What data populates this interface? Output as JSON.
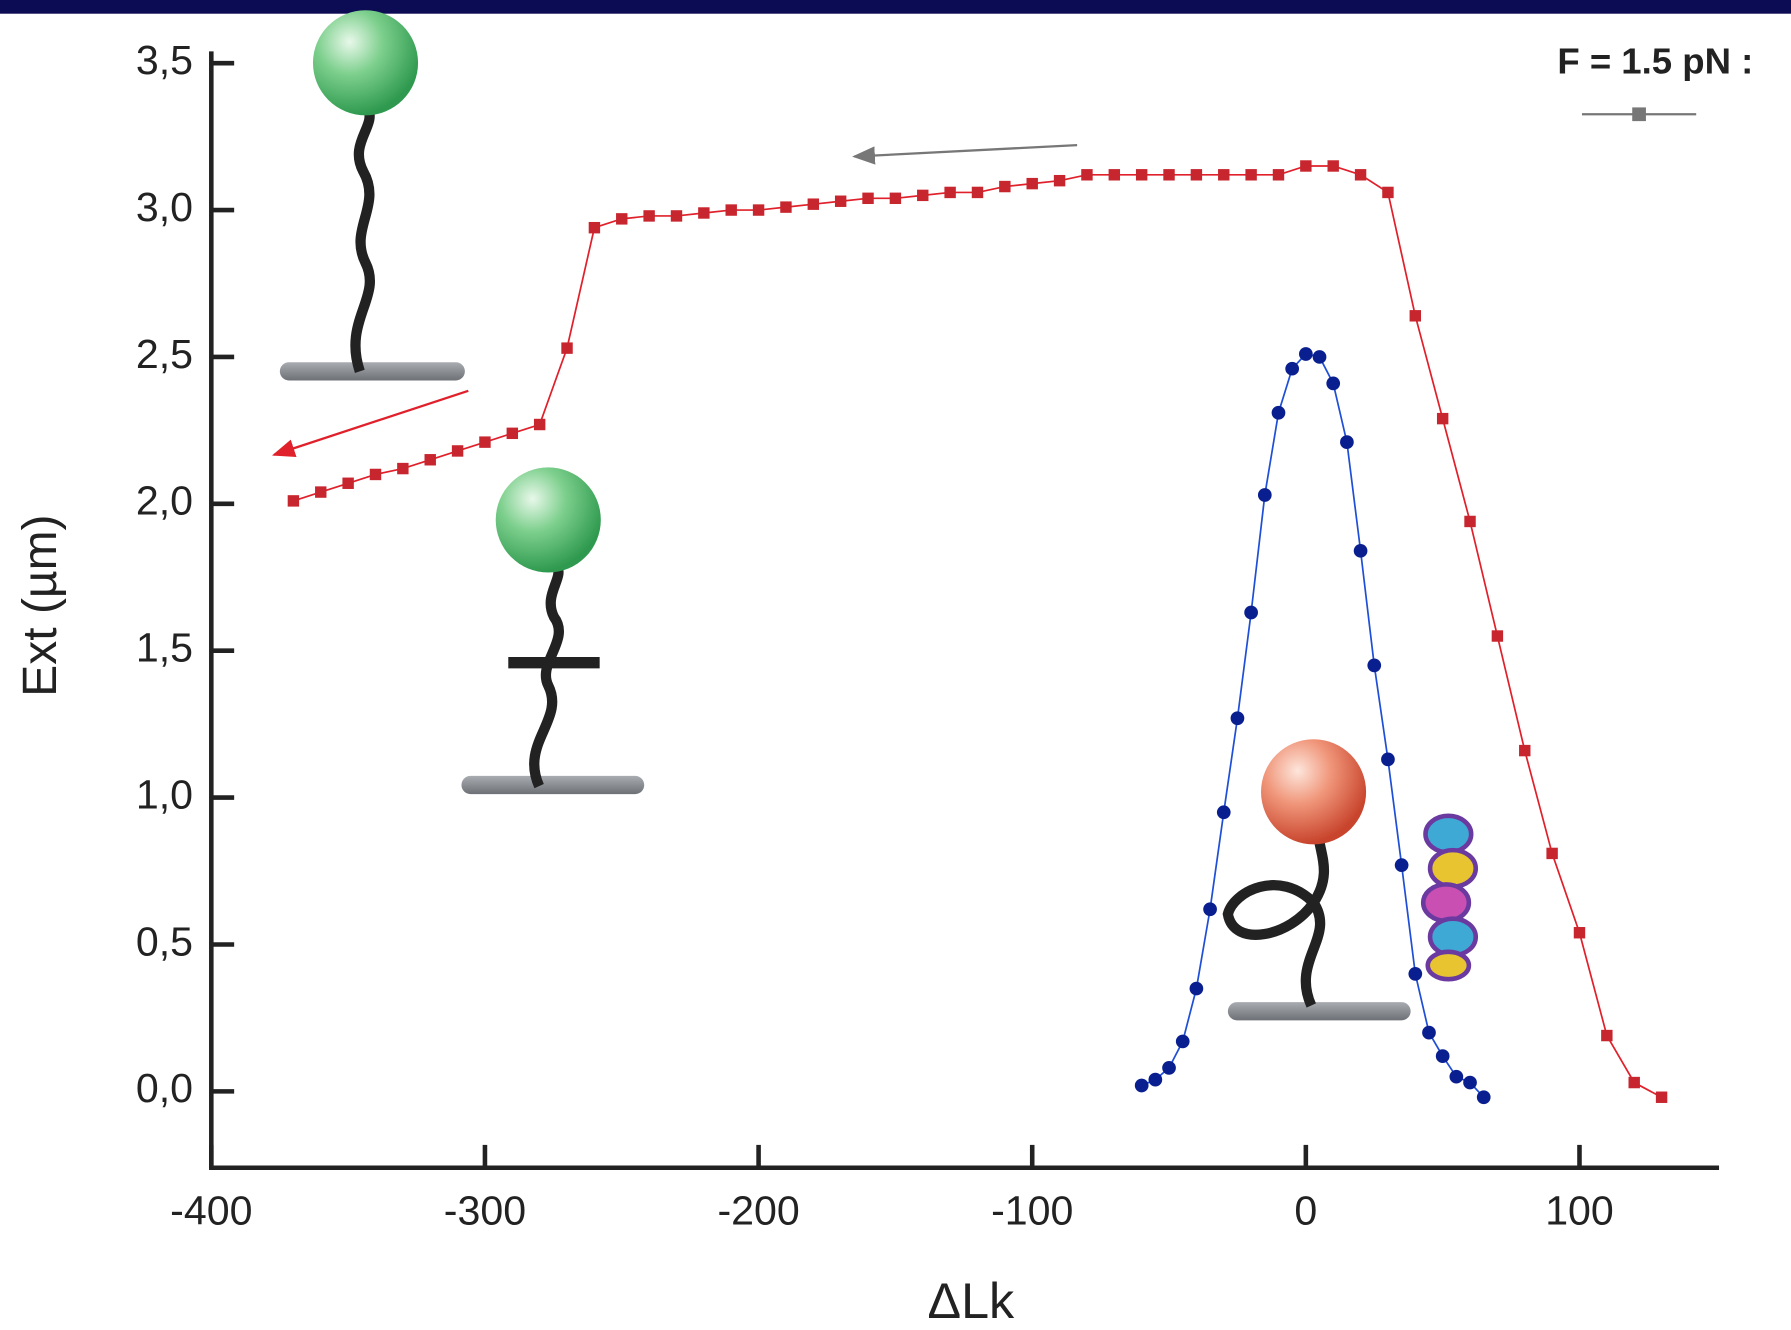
{
  "chart_data": {
    "type": "line",
    "x_label": "ΔLk",
    "y_label": "Ext (µm)",
    "legend": {
      "label": "F = 1.5 pN :",
      "color": "#777777"
    },
    "xlim": [
      -400,
      151
    ],
    "ylim": [
      -0.26,
      3.54
    ],
    "xticks": [
      -400,
      -300,
      -200,
      -100,
      0,
      100
    ],
    "yticks": [
      {
        "value": 0,
        "label": "0,0"
      },
      {
        "value": 0.5,
        "label": "0,5"
      },
      {
        "value": 1,
        "label": "1,0"
      },
      {
        "value": 1.5,
        "label": "1,5"
      },
      {
        "value": 2,
        "label": "2,0"
      },
      {
        "value": 2.5,
        "label": "2,5"
      },
      {
        "value": 3,
        "label": "3,0"
      },
      {
        "value": 3.5,
        "label": "3,5"
      }
    ],
    "series": [
      {
        "color": "#e0202a",
        "marker_color": "#c8262e",
        "x": [
          -370,
          -360,
          -350,
          -340,
          -330,
          -320,
          -310,
          -300,
          -290,
          -280,
          -270,
          -260,
          -250,
          -240,
          -230,
          -220,
          -210,
          -200,
          -190,
          -180,
          -170,
          -160,
          -150,
          -140,
          -130,
          -120,
          -110,
          -100,
          -90,
          -80,
          -70,
          -60,
          -50,
          -40,
          -30,
          -20,
          -10,
          0,
          10,
          20,
          30,
          40,
          50,
          60,
          70,
          80,
          90,
          100,
          110,
          120,
          130
        ],
        "values": [
          2.01,
          2.04,
          2.07,
          2.1,
          2.12,
          2.15,
          2.18,
          2.21,
          2.24,
          2.27,
          2.53,
          2.94,
          2.97,
          2.98,
          2.98,
          2.99,
          3.0,
          3.0,
          3.01,
          3.02,
          3.03,
          3.04,
          3.04,
          3.05,
          3.06,
          3.06,
          3.08,
          3.09,
          3.1,
          3.12,
          3.12,
          3.12,
          3.12,
          3.12,
          3.12,
          3.12,
          3.12,
          3.15,
          3.15,
          3.12,
          3.06,
          2.64,
          2.29,
          1.94,
          1.55,
          1.16,
          0.81,
          0.54,
          0.19,
          0.03,
          -0.02
        ]
      },
      {
        "color": "#1f4fd6",
        "marker_color": "#0a1f8f",
        "x": [
          -60,
          -55,
          -50,
          -45,
          -40,
          -35,
          -30,
          -25,
          -20,
          -15,
          -10,
          -5,
          0,
          5,
          10,
          15,
          20,
          25,
          30,
          35,
          40,
          45,
          50,
          55,
          60,
          65
        ],
        "values": [
          0.02,
          0.04,
          0.08,
          0.17,
          0.35,
          0.62,
          0.95,
          1.27,
          1.63,
          2.03,
          2.31,
          2.46,
          2.51,
          2.5,
          2.41,
          2.21,
          1.84,
          1.45,
          1.13,
          0.77,
          0.4,
          0.2,
          0.12,
          0.05,
          0.03,
          -0.02
        ]
      }
    ]
  }
}
